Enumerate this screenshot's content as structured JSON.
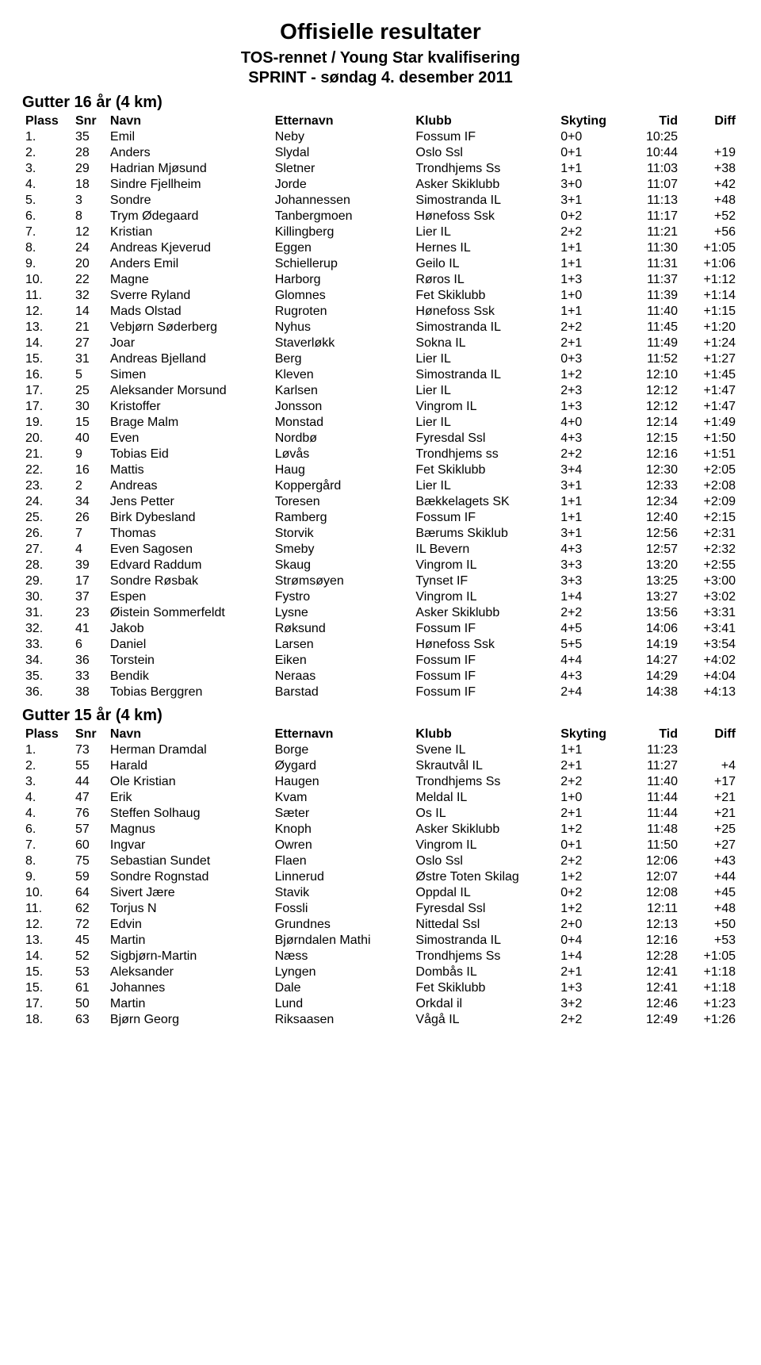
{
  "title": "Offisielle resultater",
  "subtitle1": "TOS-rennet / Young Star kvalifisering",
  "subtitle2": "SPRINT - søndag 4. desember 2011",
  "columns": {
    "plass": "Plass",
    "snr": "Snr",
    "navn": "Navn",
    "etternavn": "Etternavn",
    "klubb": "Klubb",
    "skyting": "Skyting",
    "tid": "Tid",
    "diff": "Diff"
  },
  "groups": [
    {
      "heading": "Gutter 16 år (4 km)",
      "rows": [
        {
          "plass": "1.",
          "snr": "35",
          "navn": "Emil",
          "etternavn": "Neby",
          "klubb": "Fossum IF",
          "skyting": "0+0",
          "tid": "10:25",
          "diff": ""
        },
        {
          "plass": "2.",
          "snr": "28",
          "navn": "Anders",
          "etternavn": "Slydal",
          "klubb": "Oslo Ssl",
          "skyting": "0+1",
          "tid": "10:44",
          "diff": "+19"
        },
        {
          "plass": "3.",
          "snr": "29",
          "navn": "Hadrian Mjøsund",
          "etternavn": "Sletner",
          "klubb": "Trondhjems Ss",
          "skyting": "1+1",
          "tid": "11:03",
          "diff": "+38"
        },
        {
          "plass": "4.",
          "snr": "18",
          "navn": "Sindre Fjellheim",
          "etternavn": "Jorde",
          "klubb": "Asker Skiklubb",
          "skyting": "3+0",
          "tid": "11:07",
          "diff": "+42"
        },
        {
          "plass": "5.",
          "snr": "3",
          "navn": "Sondre",
          "etternavn": "Johannessen",
          "klubb": "Simostranda IL",
          "skyting": "3+1",
          "tid": "11:13",
          "diff": "+48"
        },
        {
          "plass": "6.",
          "snr": "8",
          "navn": "Trym Ødegaard",
          "etternavn": "Tanbergmoen",
          "klubb": "Hønefoss Ssk",
          "skyting": "0+2",
          "tid": "11:17",
          "diff": "+52"
        },
        {
          "plass": "7.",
          "snr": "12",
          "navn": "Kristian",
          "etternavn": "Killingberg",
          "klubb": "Lier IL",
          "skyting": "2+2",
          "tid": "11:21",
          "diff": "+56"
        },
        {
          "plass": "8.",
          "snr": "24",
          "navn": "Andreas Kjeverud",
          "etternavn": "Eggen",
          "klubb": "Hernes IL",
          "skyting": "1+1",
          "tid": "11:30",
          "diff": "+1:05"
        },
        {
          "plass": "9.",
          "snr": "20",
          "navn": "Anders Emil",
          "etternavn": "Schiellerup",
          "klubb": "Geilo IL",
          "skyting": "1+1",
          "tid": "11:31",
          "diff": "+1:06"
        },
        {
          "plass": "10.",
          "snr": "22",
          "navn": "Magne",
          "etternavn": "Harborg",
          "klubb": "Røros IL",
          "skyting": "1+3",
          "tid": "11:37",
          "diff": "+1:12"
        },
        {
          "plass": "11.",
          "snr": "32",
          "navn": "Sverre Ryland",
          "etternavn": "Glomnes",
          "klubb": "Fet Skiklubb",
          "skyting": "1+0",
          "tid": "11:39",
          "diff": "+1:14"
        },
        {
          "plass": "12.",
          "snr": "14",
          "navn": "Mads Olstad",
          "etternavn": "Rugroten",
          "klubb": "Hønefoss Ssk",
          "skyting": "1+1",
          "tid": "11:40",
          "diff": "+1:15"
        },
        {
          "plass": "13.",
          "snr": "21",
          "navn": "Vebjørn Søderberg",
          "etternavn": "Nyhus",
          "klubb": "Simostranda IL",
          "skyting": "2+2",
          "tid": "11:45",
          "diff": "+1:20"
        },
        {
          "plass": "14.",
          "snr": "27",
          "navn": "Joar",
          "etternavn": "Staverløkk",
          "klubb": "Sokna IL",
          "skyting": "2+1",
          "tid": "11:49",
          "diff": "+1:24"
        },
        {
          "plass": "15.",
          "snr": "31",
          "navn": "Andreas Bjelland",
          "etternavn": "Berg",
          "klubb": "Lier IL",
          "skyting": "0+3",
          "tid": "11:52",
          "diff": "+1:27"
        },
        {
          "plass": "16.",
          "snr": "5",
          "navn": "Simen",
          "etternavn": "Kleven",
          "klubb": "Simostranda IL",
          "skyting": "1+2",
          "tid": "12:10",
          "diff": "+1:45"
        },
        {
          "plass": "17.",
          "snr": "25",
          "navn": "Aleksander Morsund",
          "etternavn": "Karlsen",
          "klubb": "Lier IL",
          "skyting": "2+3",
          "tid": "12:12",
          "diff": "+1:47"
        },
        {
          "plass": "17.",
          "snr": "30",
          "navn": "Kristoffer",
          "etternavn": "Jonsson",
          "klubb": "Vingrom IL",
          "skyting": "1+3",
          "tid": "12:12",
          "diff": "+1:47"
        },
        {
          "plass": "19.",
          "snr": "15",
          "navn": "Brage Malm",
          "etternavn": "Monstad",
          "klubb": "Lier IL",
          "skyting": "4+0",
          "tid": "12:14",
          "diff": "+1:49"
        },
        {
          "plass": "20.",
          "snr": "40",
          "navn": "Even",
          "etternavn": "Nordbø",
          "klubb": "Fyresdal Ssl",
          "skyting": "4+3",
          "tid": "12:15",
          "diff": "+1:50"
        },
        {
          "plass": "21.",
          "snr": "9",
          "navn": "Tobias Eid",
          "etternavn": "Løvås",
          "klubb": "Trondhjems ss",
          "skyting": "2+2",
          "tid": "12:16",
          "diff": "+1:51"
        },
        {
          "plass": "22.",
          "snr": "16",
          "navn": "Mattis",
          "etternavn": "Haug",
          "klubb": "Fet Skiklubb",
          "skyting": "3+4",
          "tid": "12:30",
          "diff": "+2:05"
        },
        {
          "plass": "23.",
          "snr": "2",
          "navn": "Andreas",
          "etternavn": "Koppergård",
          "klubb": "Lier IL",
          "skyting": "3+1",
          "tid": "12:33",
          "diff": "+2:08"
        },
        {
          "plass": "24.",
          "snr": "34",
          "navn": "Jens Petter",
          "etternavn": "Toresen",
          "klubb": "Bækkelagets SK",
          "skyting": "1+1",
          "tid": "12:34",
          "diff": "+2:09"
        },
        {
          "plass": "25.",
          "snr": "26",
          "navn": "Birk Dybesland",
          "etternavn": "Ramberg",
          "klubb": "Fossum IF",
          "skyting": "1+1",
          "tid": "12:40",
          "diff": "+2:15"
        },
        {
          "plass": "26.",
          "snr": "7",
          "navn": "Thomas",
          "etternavn": "Storvik",
          "klubb": "Bærums Skiklub",
          "skyting": "3+1",
          "tid": "12:56",
          "diff": "+2:31"
        },
        {
          "plass": "27.",
          "snr": "4",
          "navn": "Even Sagosen",
          "etternavn": "Smeby",
          "klubb": "IL Bevern",
          "skyting": "4+3",
          "tid": "12:57",
          "diff": "+2:32"
        },
        {
          "plass": "28.",
          "snr": "39",
          "navn": "Edvard Raddum",
          "etternavn": "Skaug",
          "klubb": "Vingrom IL",
          "skyting": "3+3",
          "tid": "13:20",
          "diff": "+2:55"
        },
        {
          "plass": "29.",
          "snr": "17",
          "navn": "Sondre Røsbak",
          "etternavn": "Strømsøyen",
          "klubb": "Tynset IF",
          "skyting": "3+3",
          "tid": "13:25",
          "diff": "+3:00"
        },
        {
          "plass": "30.",
          "snr": "37",
          "navn": "Espen",
          "etternavn": "Fystro",
          "klubb": "Vingrom IL",
          "skyting": "1+4",
          "tid": "13:27",
          "diff": "+3:02"
        },
        {
          "plass": "31.",
          "snr": "23",
          "navn": "Øistein Sommerfeldt",
          "etternavn": "Lysne",
          "klubb": "Asker Skiklubb",
          "skyting": "2+2",
          "tid": "13:56",
          "diff": "+3:31"
        },
        {
          "plass": "32.",
          "snr": "41",
          "navn": "Jakob",
          "etternavn": "Røksund",
          "klubb": "Fossum IF",
          "skyting": "4+5",
          "tid": "14:06",
          "diff": "+3:41"
        },
        {
          "plass": "33.",
          "snr": "6",
          "navn": "Daniel",
          "etternavn": "Larsen",
          "klubb": "Hønefoss Ssk",
          "skyting": "5+5",
          "tid": "14:19",
          "diff": "+3:54"
        },
        {
          "plass": "34.",
          "snr": "36",
          "navn": "Torstein",
          "etternavn": "Eiken",
          "klubb": "Fossum IF",
          "skyting": "4+4",
          "tid": "14:27",
          "diff": "+4:02"
        },
        {
          "plass": "35.",
          "snr": "33",
          "navn": "Bendik",
          "etternavn": "Neraas",
          "klubb": "Fossum IF",
          "skyting": "4+3",
          "tid": "14:29",
          "diff": "+4:04"
        },
        {
          "plass": "36.",
          "snr": "38",
          "navn": "Tobias Berggren",
          "etternavn": "Barstad",
          "klubb": "Fossum IF",
          "skyting": "2+4",
          "tid": "14:38",
          "diff": "+4:13"
        }
      ]
    },
    {
      "heading": "Gutter 15 år (4 km)",
      "rows": [
        {
          "plass": "1.",
          "snr": "73",
          "navn": "Herman Dramdal",
          "etternavn": "Borge",
          "klubb": "Svene IL",
          "skyting": "1+1",
          "tid": "11:23",
          "diff": ""
        },
        {
          "plass": "2.",
          "snr": "55",
          "navn": "Harald",
          "etternavn": "Øygard",
          "klubb": "Skrautvål IL",
          "skyting": "2+1",
          "tid": "11:27",
          "diff": "+4"
        },
        {
          "plass": "3.",
          "snr": "44",
          "navn": "Ole Kristian",
          "etternavn": "Haugen",
          "klubb": "Trondhjems Ss",
          "skyting": "2+2",
          "tid": "11:40",
          "diff": "+17"
        },
        {
          "plass": "4.",
          "snr": "47",
          "navn": "Erik",
          "etternavn": "Kvam",
          "klubb": "Meldal IL",
          "skyting": "1+0",
          "tid": "11:44",
          "diff": "+21"
        },
        {
          "plass": "4.",
          "snr": "76",
          "navn": "Steffen Solhaug",
          "etternavn": "Sæter",
          "klubb": "Os IL",
          "skyting": "2+1",
          "tid": "11:44",
          "diff": "+21"
        },
        {
          "plass": "6.",
          "snr": "57",
          "navn": "Magnus",
          "etternavn": "Knoph",
          "klubb": "Asker Skiklubb",
          "skyting": "1+2",
          "tid": "11:48",
          "diff": "+25"
        },
        {
          "plass": "7.",
          "snr": "60",
          "navn": "Ingvar",
          "etternavn": "Owren",
          "klubb": "Vingrom IL",
          "skyting": "0+1",
          "tid": "11:50",
          "diff": "+27"
        },
        {
          "plass": "8.",
          "snr": "75",
          "navn": "Sebastian Sundet",
          "etternavn": "Flaen",
          "klubb": "Oslo Ssl",
          "skyting": "2+2",
          "tid": "12:06",
          "diff": "+43"
        },
        {
          "plass": "9.",
          "snr": "59",
          "navn": "Sondre Rognstad",
          "etternavn": "Linnerud",
          "klubb": "Østre Toten Skilag",
          "skyting": "1+2",
          "tid": "12:07",
          "diff": "+44"
        },
        {
          "plass": "10.",
          "snr": "64",
          "navn": "Sivert Jære",
          "etternavn": "Stavik",
          "klubb": "Oppdal IL",
          "skyting": "0+2",
          "tid": "12:08",
          "diff": "+45"
        },
        {
          "plass": "11.",
          "snr": "62",
          "navn": "Torjus N",
          "etternavn": "Fossli",
          "klubb": "Fyresdal Ssl",
          "skyting": "1+2",
          "tid": "12:11",
          "diff": "+48"
        },
        {
          "plass": "12.",
          "snr": "72",
          "navn": "Edvin",
          "etternavn": "Grundnes",
          "klubb": "Nittedal Ssl",
          "skyting": "2+0",
          "tid": "12:13",
          "diff": "+50"
        },
        {
          "plass": "13.",
          "snr": "45",
          "navn": "Martin",
          "etternavn": "Bjørndalen Mathi",
          "klubb": "Simostranda IL",
          "skyting": "0+4",
          "tid": "12:16",
          "diff": "+53"
        },
        {
          "plass": "14.",
          "snr": "52",
          "navn": "Sigbjørn-Martin",
          "etternavn": "Næss",
          "klubb": "Trondhjems Ss",
          "skyting": "1+4",
          "tid": "12:28",
          "diff": "+1:05"
        },
        {
          "plass": "15.",
          "snr": "53",
          "navn": "Aleksander",
          "etternavn": "Lyngen",
          "klubb": "Dombås IL",
          "skyting": "2+1",
          "tid": "12:41",
          "diff": "+1:18"
        },
        {
          "plass": "15.",
          "snr": "61",
          "navn": "Johannes",
          "etternavn": "Dale",
          "klubb": "Fet Skiklubb",
          "skyting": "1+3",
          "tid": "12:41",
          "diff": "+1:18"
        },
        {
          "plass": "17.",
          "snr": "50",
          "navn": "Martin",
          "etternavn": "Lund",
          "klubb": "Orkdal il",
          "skyting": "3+2",
          "tid": "12:46",
          "diff": "+1:23"
        },
        {
          "plass": "18.",
          "snr": "63",
          "navn": "Bjørn Georg",
          "etternavn": "Riksaasen",
          "klubb": "Vågå IL",
          "skyting": "2+2",
          "tid": "12:49",
          "diff": "+1:26"
        }
      ]
    }
  ]
}
